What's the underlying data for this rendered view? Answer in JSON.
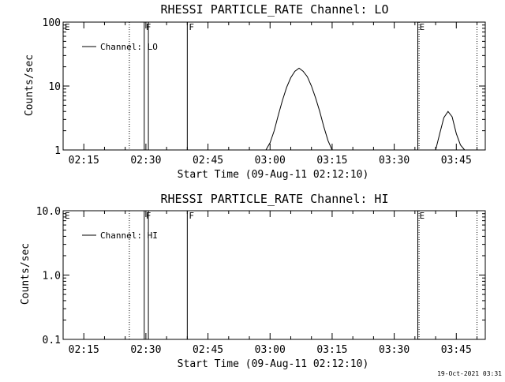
{
  "footer": {
    "timestamp": "19-Oct-2021 03:31"
  },
  "chart_data": [
    {
      "type": "line",
      "title": "RHESSI PARTICLE_RATE Channel: LO",
      "xlabel": "Start Time (09-Aug-11 02:12:10)",
      "ylabel": "Counts/sec",
      "yscale": "log",
      "ylim": [
        1,
        100
      ],
      "yticks": [
        1,
        10,
        100
      ],
      "ytick_labels": [
        "1",
        "10",
        "100"
      ],
      "xlim": [
        "02:10",
        "03:52"
      ],
      "xticks": [
        "02:15",
        "02:30",
        "02:45",
        "03:00",
        "03:15",
        "03:30",
        "03:45"
      ],
      "legend_placement": "top-left",
      "series": [
        {
          "name": "Channel: LO",
          "x": [
            "02:59",
            "03:00",
            "03:01",
            "03:02",
            "03:03",
            "03:04",
            "03:05",
            "03:06",
            "03:07",
            "03:08",
            "03:09",
            "03:10",
            "03:11",
            "03:12",
            "03:13",
            "03:14",
            "03:15"
          ],
          "y": [
            1.0,
            1.3,
            2.0,
            3.5,
            6.0,
            9.5,
            13.5,
            17.0,
            19.0,
            17.0,
            14.0,
            10.0,
            6.5,
            4.0,
            2.3,
            1.4,
            1.0
          ]
        },
        {
          "name": "",
          "x": [
            "03:40",
            "03:41",
            "03:42",
            "03:43",
            "03:44",
            "03:45",
            "03:46",
            "03:47"
          ],
          "y": [
            1.0,
            1.8,
            3.2,
            4.0,
            3.3,
            1.8,
            1.2,
            1.0
          ]
        }
      ],
      "markers": [
        {
          "time": "02:10",
          "label": "E",
          "style": "solid"
        },
        {
          "time": "02:26",
          "label": "",
          "style": "dotted"
        },
        {
          "time": "02:29.6",
          "label": "F",
          "style": "solid"
        },
        {
          "time": "02:30.6",
          "label": "",
          "style": "solid"
        },
        {
          "time": "02:40",
          "label": "F",
          "style": "solid"
        },
        {
          "time": "03:36",
          "label": "",
          "style": "dotted"
        },
        {
          "time": "03:35.7",
          "label": "E",
          "style": "solid"
        },
        {
          "time": "03:50",
          "label": "",
          "style": "dotted"
        }
      ]
    },
    {
      "type": "line",
      "title": "RHESSI PARTICLE_RATE Channel: HI",
      "xlabel": "Start Time (09-Aug-11 02:12:10)",
      "ylabel": "Counts/sec",
      "yscale": "log",
      "ylim": [
        0.1,
        10
      ],
      "yticks": [
        0.1,
        1,
        10
      ],
      "ytick_labels": [
        "0.1",
        "1.0",
        "10.0"
      ],
      "xlim": [
        "02:10",
        "03:52"
      ],
      "xticks": [
        "02:15",
        "02:30",
        "02:45",
        "03:00",
        "03:15",
        "03:30",
        "03:45"
      ],
      "legend_placement": "top-left",
      "series": [
        {
          "name": "Channel: HI",
          "x": [],
          "y": []
        }
      ],
      "markers": [
        {
          "time": "02:10",
          "label": "E",
          "style": "solid"
        },
        {
          "time": "02:26",
          "label": "",
          "style": "dotted"
        },
        {
          "time": "02:29.6",
          "label": "F",
          "style": "solid"
        },
        {
          "time": "02:30.6",
          "label": "",
          "style": "solid"
        },
        {
          "time": "02:40",
          "label": "F",
          "style": "solid"
        },
        {
          "time": "03:36",
          "label": "",
          "style": "dotted"
        },
        {
          "time": "03:35.7",
          "label": "E",
          "style": "solid"
        },
        {
          "time": "03:50",
          "label": "",
          "style": "dotted"
        }
      ]
    }
  ]
}
